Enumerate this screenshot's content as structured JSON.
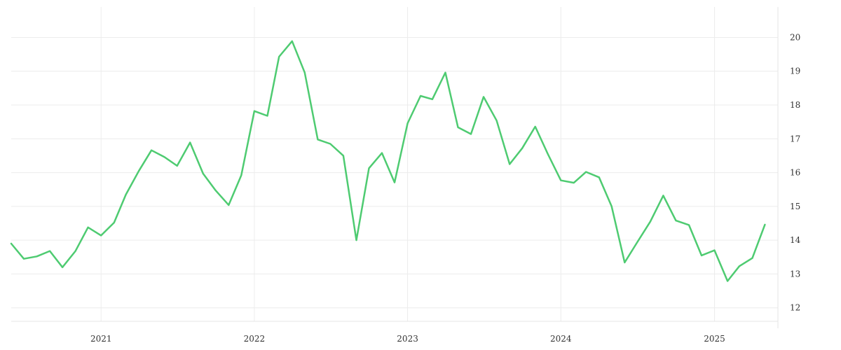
{
  "chart_data": {
    "type": "line",
    "title": "",
    "xlabel": "",
    "ylabel": "",
    "grid": true,
    "y_axis_side": "right",
    "x_range": [
      "2020-06-01",
      "2025-06-01"
    ],
    "ylim": [
      11.6,
      20.9
    ],
    "x_ticks": [
      {
        "date": "2021-01-01",
        "label": "2021"
      },
      {
        "date": "2022-01-01",
        "label": "2022"
      },
      {
        "date": "2023-01-01",
        "label": "2023"
      },
      {
        "date": "2024-01-01",
        "label": "2024"
      },
      {
        "date": "2025-01-01",
        "label": "2025"
      }
    ],
    "y_ticks": [
      12,
      13,
      14,
      15,
      16,
      17,
      18,
      19,
      20
    ],
    "colors": {
      "line": "#4ecb71",
      "grid": "#ececec"
    },
    "series": [
      {
        "x": [
          "2020-06-01",
          "2020-07-01",
          "2020-08-01",
          "2020-09-01",
          "2020-10-01",
          "2020-11-01",
          "2020-12-01",
          "2021-01-01",
          "2021-02-01",
          "2021-03-01",
          "2021-04-01",
          "2021-05-01",
          "2021-06-01",
          "2021-07-01",
          "2021-08-01",
          "2021-09-01",
          "2021-10-01",
          "2021-11-01",
          "2021-12-01",
          "2022-01-01",
          "2022-02-01",
          "2022-03-01",
          "2022-04-01",
          "2022-05-01",
          "2022-06-01",
          "2022-07-01",
          "2022-08-01",
          "2022-09-01",
          "2022-10-01",
          "2022-11-01",
          "2022-12-01",
          "2023-01-01",
          "2023-02-01",
          "2023-03-01",
          "2023-04-01",
          "2023-05-01",
          "2023-06-01",
          "2023-07-01",
          "2023-08-01",
          "2023-09-01",
          "2023-10-01",
          "2023-11-01",
          "2023-12-01",
          "2024-01-01",
          "2024-02-01",
          "2024-03-01",
          "2024-04-01",
          "2024-05-01",
          "2024-06-01",
          "2024-07-01",
          "2024-08-01",
          "2024-09-01",
          "2024-10-01",
          "2024-11-01",
          "2024-12-01",
          "2025-01-01",
          "2025-02-01",
          "2025-03-01",
          "2025-04-01",
          "2025-05-01"
        ],
        "values": [
          13.9,
          13.45,
          13.52,
          13.68,
          13.2,
          13.68,
          14.38,
          14.14,
          14.52,
          15.35,
          16.05,
          16.66,
          16.46,
          16.2,
          16.89,
          15.97,
          15.47,
          15.04,
          15.92,
          17.82,
          17.68,
          19.43,
          19.89,
          18.96,
          16.98,
          16.85,
          16.5,
          14.0,
          16.13,
          16.58,
          15.71,
          17.46,
          18.27,
          18.17,
          18.96,
          17.34,
          17.14,
          18.24,
          17.54,
          16.25,
          16.72,
          17.36,
          16.55,
          15.77,
          15.7,
          16.02,
          15.86,
          15.0,
          13.34,
          13.94,
          14.55,
          15.32,
          14.58,
          14.45,
          13.55,
          13.7,
          12.79,
          13.23,
          13.47,
          14.46
        ]
      }
    ]
  }
}
